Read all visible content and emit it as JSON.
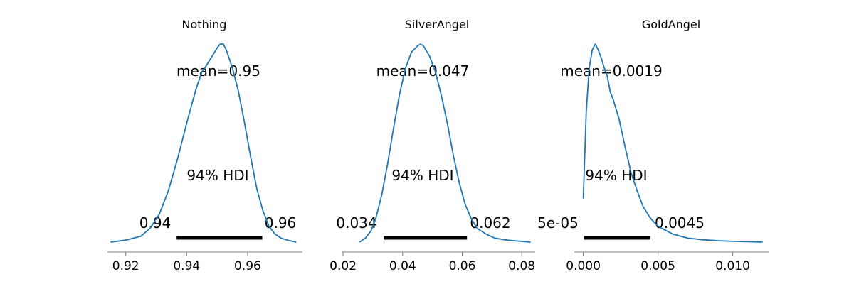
{
  "chart_data": [
    {
      "type": "density",
      "title": "Nothing",
      "mean_label": "mean=0.95",
      "hdi_label": "94% HDI",
      "hdi": [
        0.9367,
        0.9648
      ],
      "hdi_low_label": "0.94",
      "hdi_high_label": "0.96",
      "xlim": [
        0.914,
        0.978
      ],
      "xticks": [
        0.92,
        0.94,
        0.96
      ],
      "xtick_labels": [
        "0.92",
        "0.94",
        "0.96"
      ],
      "x": [
        0.915,
        0.92,
        0.925,
        0.928,
        0.931,
        0.934,
        0.937,
        0.94,
        0.943,
        0.945,
        0.946,
        0.948,
        0.95,
        0.951,
        0.952,
        0.953,
        0.955,
        0.957,
        0.959,
        0.961,
        0.963,
        0.965,
        0.967,
        0.969,
        0.971,
        0.973,
        0.976
      ],
      "density": [
        0.0,
        0.01,
        0.03,
        0.07,
        0.14,
        0.26,
        0.42,
        0.6,
        0.77,
        0.86,
        0.88,
        0.93,
        0.98,
        1.0,
        1.0,
        0.97,
        0.88,
        0.76,
        0.6,
        0.43,
        0.27,
        0.16,
        0.08,
        0.04,
        0.02,
        0.01,
        0.0
      ]
    },
    {
      "type": "density",
      "title": "SilverAngel",
      "mean_label": "mean=0.047",
      "hdi_label": "94% HDI",
      "hdi": [
        0.0336,
        0.0616
      ],
      "hdi_low_label": "0.034",
      "hdi_high_label": "0.062",
      "xlim": [
        0.0195,
        0.0845
      ],
      "xticks": [
        0.02,
        0.04,
        0.06,
        0.08
      ],
      "xtick_labels": [
        "0.02",
        "0.04",
        "0.06",
        "0.08"
      ],
      "x": [
        0.0255,
        0.0275,
        0.0295,
        0.031,
        0.033,
        0.035,
        0.037,
        0.039,
        0.041,
        0.043,
        0.045,
        0.046,
        0.047,
        0.049,
        0.051,
        0.053,
        0.055,
        0.057,
        0.059,
        0.061,
        0.063,
        0.065,
        0.068,
        0.071,
        0.075,
        0.079,
        0.083
      ],
      "density": [
        0.0,
        0.02,
        0.06,
        0.12,
        0.24,
        0.4,
        0.58,
        0.75,
        0.88,
        0.96,
        0.99,
        1.0,
        0.99,
        0.94,
        0.86,
        0.74,
        0.6,
        0.44,
        0.3,
        0.19,
        0.12,
        0.07,
        0.04,
        0.02,
        0.01,
        0.005,
        0.0
      ]
    },
    {
      "type": "density",
      "title": "GoldAngel",
      "mean_label": "mean=0.0019",
      "hdi_label": "94% HDI",
      "hdi": [
        5e-05,
        0.0045
      ],
      "hdi_low_label": "5e-05",
      "hdi_high_label": "0.0045",
      "xlim": [
        -0.0006,
        0.0124
      ],
      "xticks": [
        0.0,
        0.005,
        0.01
      ],
      "xtick_labels": [
        "0.000",
        "0.005",
        "0.010"
      ],
      "x": [
        0.0,
        0.0002,
        0.0004,
        0.0006,
        0.0008,
        0.001,
        0.0012,
        0.0014,
        0.0016,
        0.0018,
        0.002,
        0.0024,
        0.0028,
        0.0032,
        0.0036,
        0.004,
        0.0045,
        0.005,
        0.0055,
        0.006,
        0.0065,
        0.007,
        0.008,
        0.009,
        0.01,
        0.011,
        0.012
      ],
      "density": [
        0.22,
        0.66,
        0.88,
        0.97,
        1.0,
        0.97,
        0.93,
        0.88,
        0.84,
        0.76,
        0.72,
        0.62,
        0.48,
        0.35,
        0.26,
        0.18,
        0.12,
        0.08,
        0.06,
        0.04,
        0.03,
        0.02,
        0.012,
        0.007,
        0.004,
        0.002,
        0.0
      ]
    }
  ]
}
